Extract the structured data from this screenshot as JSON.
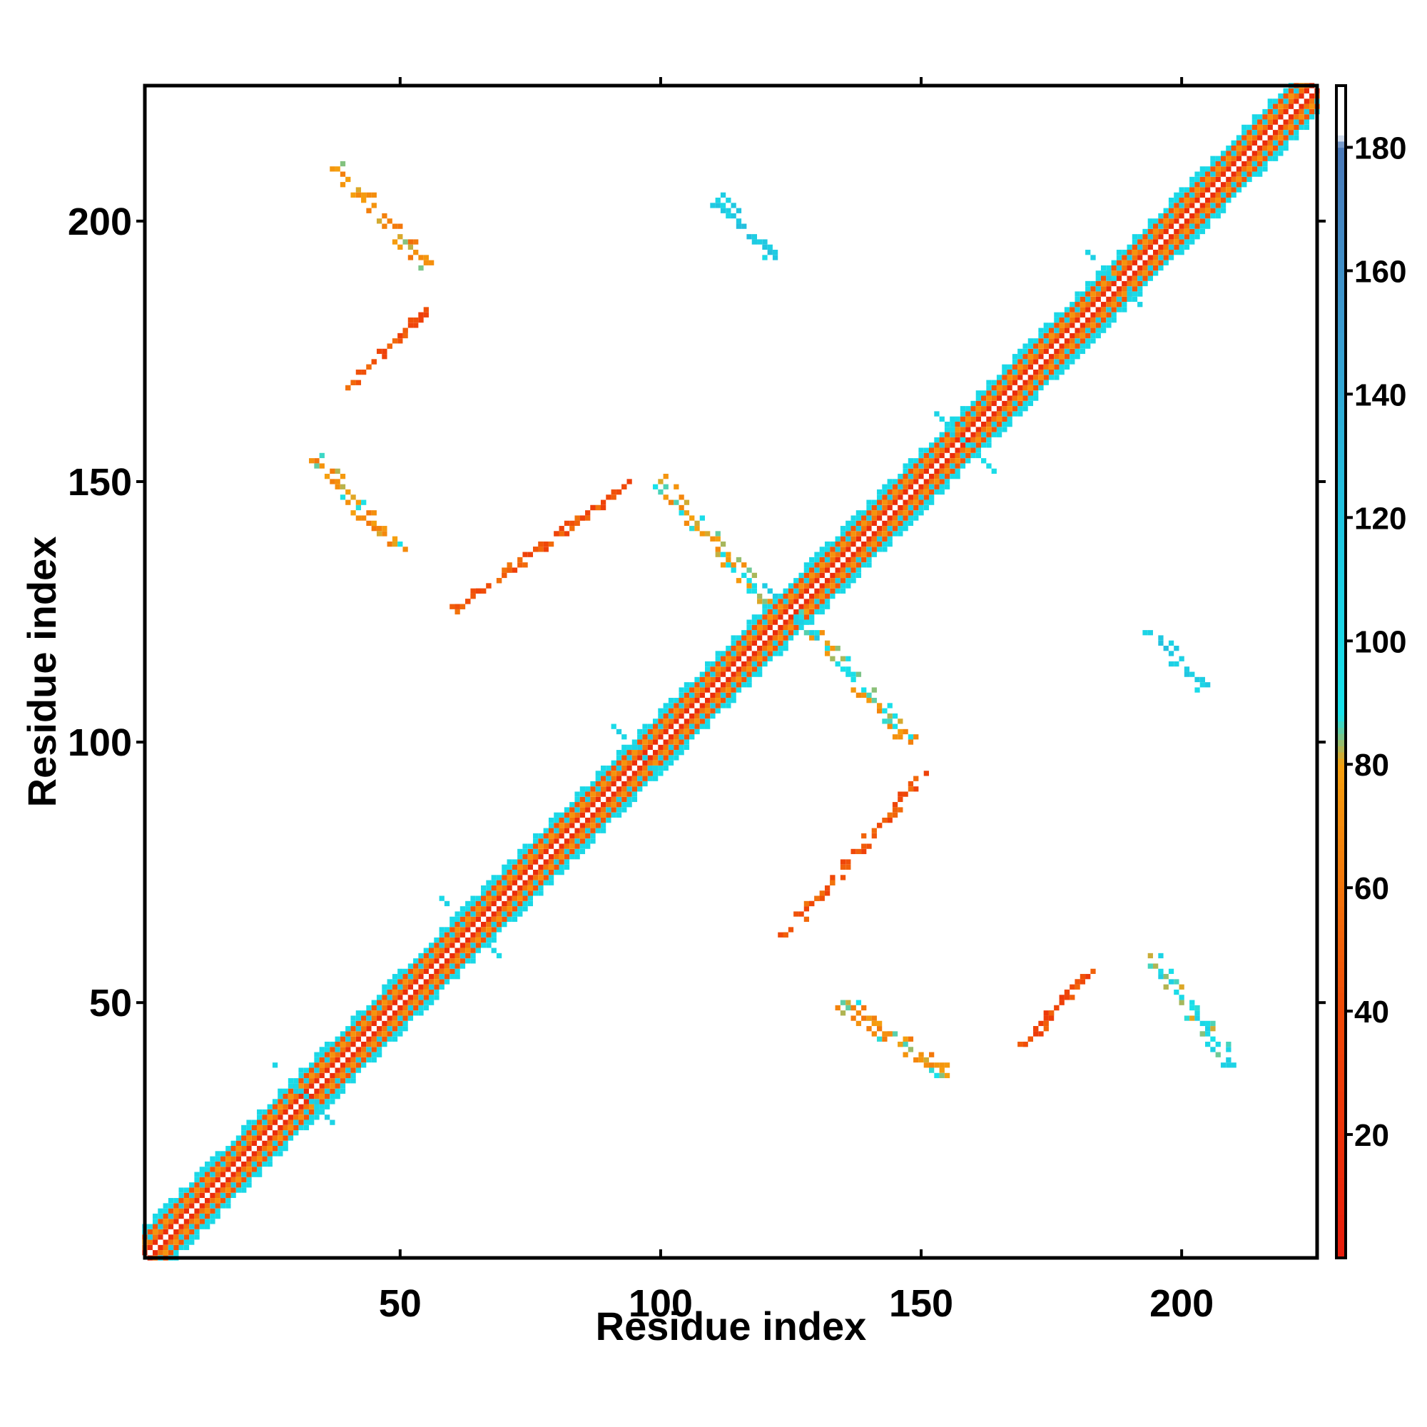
{
  "chart_data": {
    "type": "heatmap",
    "title": "",
    "xlabel": "Residue index",
    "ylabel": "Residue index",
    "xlim": [
      1,
      226
    ],
    "ylim": [
      1,
      226
    ],
    "xticks": [
      50,
      100,
      150,
      200
    ],
    "yticks": [
      50,
      100,
      150,
      200
    ],
    "grid": false,
    "colorbar": {
      "position": "right",
      "range": [
        0,
        190
      ],
      "ticks": [
        20,
        40,
        60,
        80,
        100,
        120,
        140,
        160,
        180
      ],
      "stops": [
        {
          "value": 0,
          "color": "#e81c0c"
        },
        {
          "value": 40,
          "color": "#f04a08"
        },
        {
          "value": 80,
          "color": "#f5a00e"
        },
        {
          "value": 88,
          "color": "#18e2ea"
        },
        {
          "value": 120,
          "color": "#20c4e0"
        },
        {
          "value": 150,
          "color": "#3a9cd0"
        },
        {
          "value": 180,
          "color": "#4a78b8"
        },
        {
          "value": 182,
          "color": "#ffffff"
        }
      ]
    },
    "diagonal_band": {
      "from": 1,
      "to": 226,
      "half_width": 6
    },
    "features": [
      {
        "kind": "band",
        "x": [
          38,
          55
        ],
        "y": [
          210,
          192
        ],
        "value": 70
      },
      {
        "kind": "band",
        "x": [
          40,
          55
        ],
        "y": [
          168,
          183
        ],
        "value": 45
      },
      {
        "kind": "band",
        "x": [
          34,
          50
        ],
        "y": [
          154,
          137
        ],
        "value": 75
      },
      {
        "kind": "band",
        "x": [
          60,
          93
        ],
        "y": [
          125,
          149
        ],
        "value": 45
      },
      {
        "kind": "band",
        "x": [
          100,
          120
        ],
        "y": [
          150,
          127
        ],
        "value": 80
      },
      {
        "kind": "band",
        "x": [
          111,
          122
        ],
        "y": [
          204,
          193
        ],
        "value": 110
      },
      {
        "kind": "band",
        "x": [
          124,
          150
        ],
        "y": [
          63,
          93
        ],
        "value": 45
      },
      {
        "kind": "band",
        "x": [
          126,
          148
        ],
        "y": [
          125,
          100
        ],
        "value": 80
      },
      {
        "kind": "band",
        "x": [
          135,
          155
        ],
        "y": [
          50,
          36
        ],
        "value": 75
      },
      {
        "kind": "band",
        "x": [
          170,
          182
        ],
        "y": [
          42,
          56
        ],
        "value": 40
      },
      {
        "kind": "band",
        "x": [
          193,
          210
        ],
        "y": [
          60,
          38
        ],
        "value": 95
      },
      {
        "kind": "band",
        "x": [
          194,
          204
        ],
        "y": [
          121,
          111
        ],
        "value": 110
      },
      {
        "kind": "cross",
        "x": 64,
        "y": 64,
        "value": 100
      },
      {
        "kind": "cross",
        "x": 97,
        "y": 97,
        "value": 100
      },
      {
        "kind": "cross",
        "x": 125,
        "y": 125,
        "value": 110
      },
      {
        "kind": "cross",
        "x": 158,
        "y": 158,
        "value": 100
      },
      {
        "kind": "cross",
        "x": 188,
        "y": 188,
        "value": 100
      },
      {
        "kind": "cross",
        "x": 32,
        "y": 32,
        "value": 100
      }
    ]
  }
}
